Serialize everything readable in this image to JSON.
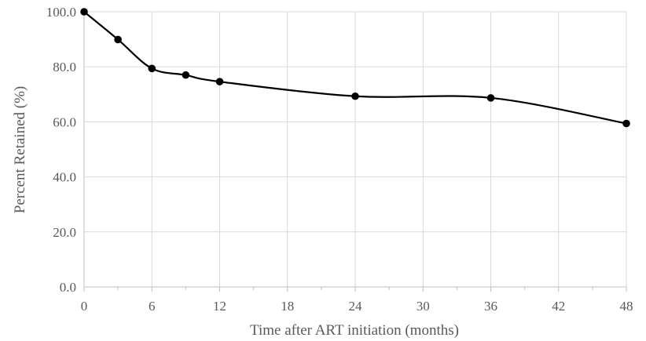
{
  "chart_data": {
    "type": "line",
    "title": "",
    "xlabel": "Time after ART initiation (months)",
    "ylabel": "Percent Retained (%)",
    "x": [
      0,
      3,
      6,
      9,
      12,
      24,
      36,
      48
    ],
    "series": [
      {
        "values": [
          100.0,
          89.9,
          79.4,
          77.0,
          74.6,
          69.3,
          68.7,
          59.4
        ]
      }
    ],
    "xlim": [
      0,
      48
    ],
    "ylim": [
      0,
      100
    ],
    "xticks": [
      "0",
      "6",
      "12",
      "18",
      "24",
      "30",
      "36",
      "42",
      "48"
    ],
    "yticks": [
      "0.0",
      "20.0",
      "40.0",
      "60.0",
      "80.0",
      "100.0"
    ],
    "grid": true,
    "smoothed": true,
    "legend": "none",
    "colors": {
      "line": "#000000",
      "marker": "#000000",
      "grid": "#d9d9d9",
      "axis": "#bfbfbf",
      "text": "#595959"
    }
  }
}
